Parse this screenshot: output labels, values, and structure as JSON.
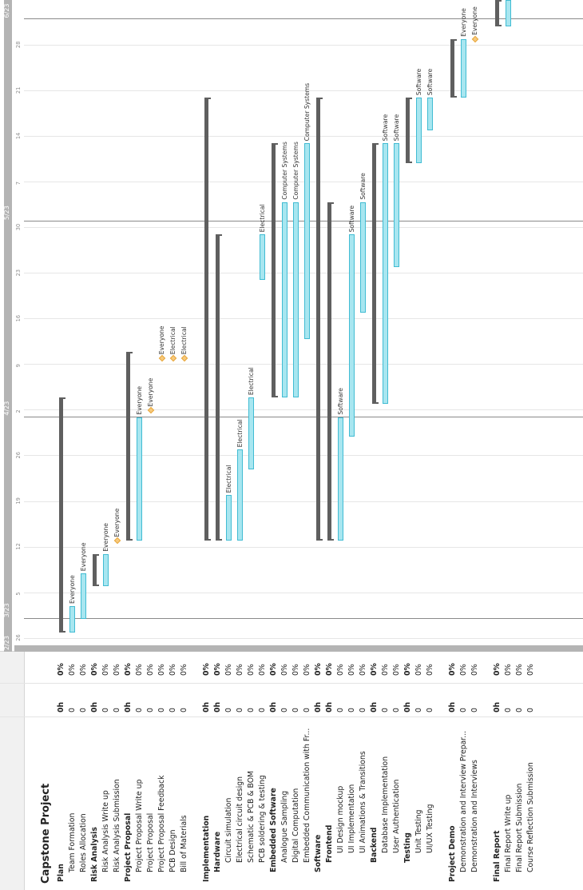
{
  "project_title": "Capstone Project",
  "timeline": {
    "months": [
      "2/23",
      "3/23",
      "4/23",
      "5/23",
      "6/23"
    ],
    "days": [
      "26",
      "5",
      "12",
      "19",
      "26",
      "2",
      "9",
      "16",
      "23",
      "30",
      "7",
      "14",
      "21",
      "28"
    ]
  },
  "rows": [
    {
      "name": "Plan",
      "hours": "0h",
      "pct": "0%",
      "bold": true,
      "indent": 0
    },
    {
      "name": "Team Formation",
      "hours": "0",
      "pct": "0%",
      "bold": false,
      "indent": 1
    },
    {
      "name": "Roles Allocation",
      "hours": "0",
      "pct": "0%",
      "bold": false,
      "indent": 1
    },
    {
      "name": "Risk Analysis",
      "hours": "0h",
      "pct": "0%",
      "bold": true,
      "indent": 0
    },
    {
      "name": "Risk Analysis Write up",
      "hours": "0",
      "pct": "0%",
      "bold": false,
      "indent": 1
    },
    {
      "name": "Risk Analysis Submission",
      "hours": "0",
      "pct": "0%",
      "bold": false,
      "indent": 1
    },
    {
      "name": "Project Proposal",
      "hours": "0h",
      "pct": "0%",
      "bold": true,
      "indent": 0
    },
    {
      "name": "Project Proposal Write up",
      "hours": "0",
      "pct": "0%",
      "bold": false,
      "indent": 1
    },
    {
      "name": "Project Proposal",
      "hours": "0",
      "pct": "0%",
      "bold": false,
      "indent": 1
    },
    {
      "name": "Project Proposal Feedback",
      "hours": "0",
      "pct": "0%",
      "bold": false,
      "indent": 1
    },
    {
      "name": "PCB Design",
      "hours": "0",
      "pct": "0%",
      "bold": false,
      "indent": 1
    },
    {
      "name": "Bill of Materials",
      "hours": "0",
      "pct": "0%",
      "bold": false,
      "indent": 1
    },
    {
      "name": "",
      "hours": "",
      "pct": "",
      "bold": false,
      "indent": 0
    },
    {
      "name": "Implementation",
      "hours": "0h",
      "pct": "0%",
      "bold": true,
      "indent": 0
    },
    {
      "name": "Hardware",
      "hours": "0h",
      "pct": "0%",
      "bold": true,
      "indent": 1
    },
    {
      "name": "Circuit simulation",
      "hours": "0",
      "pct": "0%",
      "bold": false,
      "indent": 2
    },
    {
      "name": "Electrical circuit design",
      "hours": "0",
      "pct": "0%",
      "bold": false,
      "indent": 2
    },
    {
      "name": "Schematic & PCB & BOM",
      "hours": "0",
      "pct": "0%",
      "bold": false,
      "indent": 2
    },
    {
      "name": "PCB soldering &  testing",
      "hours": "0",
      "pct": "0%",
      "bold": false,
      "indent": 2
    },
    {
      "name": "Embedded Software",
      "hours": "0h",
      "pct": "0%",
      "bold": true,
      "indent": 1
    },
    {
      "name": "Analogue Sampling",
      "hours": "0",
      "pct": "0%",
      "bold": false,
      "indent": 2
    },
    {
      "name": "Digital Computation",
      "hours": "0",
      "pct": "0%",
      "bold": false,
      "indent": 2
    },
    {
      "name": "Embedded Communication with Fr...",
      "hours": "0",
      "pct": "0%",
      "bold": false,
      "indent": 2
    },
    {
      "name": "Software",
      "hours": "0h",
      "pct": "0%",
      "bold": true,
      "indent": 1
    },
    {
      "name": "Frontend",
      "hours": "0h",
      "pct": "0%",
      "bold": true,
      "indent": 2
    },
    {
      "name": "UI Design mockup",
      "hours": "0",
      "pct": "0%",
      "bold": false,
      "indent": 3
    },
    {
      "name": "UI Implementation",
      "hours": "0",
      "pct": "0%",
      "bold": false,
      "indent": 3
    },
    {
      "name": "UI Animations & Transitions",
      "hours": "0",
      "pct": "0%",
      "bold": false,
      "indent": 3
    },
    {
      "name": "Backend",
      "hours": "0h",
      "pct": "0%",
      "bold": true,
      "indent": 2
    },
    {
      "name": "Database Implementation",
      "hours": "0",
      "pct": "0%",
      "bold": false,
      "indent": 3
    },
    {
      "name": "User Authentication",
      "hours": "0",
      "pct": "0%",
      "bold": false,
      "indent": 3
    },
    {
      "name": "Testing",
      "hours": "0h",
      "pct": "0%",
      "bold": true,
      "indent": 2
    },
    {
      "name": "Unit Testing",
      "hours": "0",
      "pct": "0%",
      "bold": false,
      "indent": 3
    },
    {
      "name": "UI/UX Testing",
      "hours": "0",
      "pct": "0%",
      "bold": false,
      "indent": 3
    },
    {
      "name": "",
      "hours": "",
      "pct": "",
      "bold": false,
      "indent": 0
    },
    {
      "name": "Project Demo",
      "hours": "0h",
      "pct": "0%",
      "bold": true,
      "indent": 0
    },
    {
      "name": "Demonstration and Interview Prepar...",
      "hours": "0",
      "pct": "0%",
      "bold": false,
      "indent": 1
    },
    {
      "name": "Demonstration and Interviews",
      "hours": "0",
      "pct": "0%",
      "bold": false,
      "indent": 1
    },
    {
      "name": "",
      "hours": "",
      "pct": "",
      "bold": false,
      "indent": 0
    },
    {
      "name": "Final Report",
      "hours": "0h",
      "pct": "0%",
      "bold": true,
      "indent": 0
    },
    {
      "name": "Final Report Write up",
      "hours": "0",
      "pct": "0%",
      "bold": false,
      "indent": 1
    },
    {
      "name": "Final Report Submission",
      "hours": "0",
      "pct": "0%",
      "bold": false,
      "indent": 1
    },
    {
      "name": "Course Reflection Submission",
      "hours": "0",
      "pct": "0%",
      "bold": false,
      "indent": 1
    }
  ],
  "chart_data": {
    "type": "gantt",
    "tasks": [
      {
        "row": 0,
        "kind": "summary",
        "start": "2023-02-27",
        "end": "2023-04-04"
      },
      {
        "row": 1,
        "kind": "task",
        "start": "2023-02-27",
        "end": "2023-03-03",
        "label": "Everyone"
      },
      {
        "row": 2,
        "kind": "task",
        "start": "2023-03-01",
        "end": "2023-03-08",
        "label": "Everyone"
      },
      {
        "row": 3,
        "kind": "summary",
        "start": "2023-03-06",
        "end": "2023-03-11"
      },
      {
        "row": 4,
        "kind": "task",
        "start": "2023-03-06",
        "end": "2023-03-11",
        "label": "Everyone"
      },
      {
        "row": 5,
        "kind": "milestone",
        "start": "2023-03-13",
        "label": "Everyone"
      },
      {
        "row": 6,
        "kind": "summary",
        "start": "2023-03-13",
        "end": "2023-04-11"
      },
      {
        "row": 7,
        "kind": "task",
        "start": "2023-03-13",
        "end": "2023-04-01",
        "label": "Everyone"
      },
      {
        "row": 8,
        "kind": "milestone",
        "start": "2023-04-02",
        "label": "Everyone"
      },
      {
        "row": 9,
        "kind": "milestone",
        "start": "2023-04-10",
        "label": "Everyone"
      },
      {
        "row": 10,
        "kind": "milestone",
        "start": "2023-04-10",
        "label": "Electrical"
      },
      {
        "row": 11,
        "kind": "milestone",
        "start": "2023-04-10",
        "label": "Electrical"
      },
      {
        "row": 13,
        "kind": "summary",
        "start": "2023-03-13",
        "end": "2023-05-20"
      },
      {
        "row": 14,
        "kind": "summary",
        "start": "2023-03-13",
        "end": "2023-04-29"
      },
      {
        "row": 15,
        "kind": "task",
        "start": "2023-03-13",
        "end": "2023-03-20",
        "label": "Electrical"
      },
      {
        "row": 16,
        "kind": "task",
        "start": "2023-03-13",
        "end": "2023-03-27",
        "label": "Electrical"
      },
      {
        "row": 17,
        "kind": "task",
        "start": "2023-03-24",
        "end": "2023-04-04",
        "label": "Electrical"
      },
      {
        "row": 18,
        "kind": "task",
        "start": "2023-04-22",
        "end": "2023-04-29",
        "label": "Electrical"
      },
      {
        "row": 19,
        "kind": "summary",
        "start": "2023-04-04",
        "end": "2023-05-13"
      },
      {
        "row": 20,
        "kind": "task",
        "start": "2023-04-04",
        "end": "2023-05-04",
        "label": "Computer Systems"
      },
      {
        "row": 21,
        "kind": "task",
        "start": "2023-04-04",
        "end": "2023-05-04",
        "label": "Computer Systems"
      },
      {
        "row": 22,
        "kind": "task",
        "start": "2023-04-13",
        "end": "2023-05-13",
        "label": "Computer Systems"
      },
      {
        "row": 23,
        "kind": "summary",
        "start": "2023-03-13",
        "end": "2023-05-20"
      },
      {
        "row": 24,
        "kind": "summary",
        "start": "2023-03-13",
        "end": "2023-05-04"
      },
      {
        "row": 25,
        "kind": "task",
        "start": "2023-03-13",
        "end": "2023-04-01",
        "label": "Software"
      },
      {
        "row": 26,
        "kind": "task",
        "start": "2023-03-29",
        "end": "2023-04-29",
        "label": "Software"
      },
      {
        "row": 27,
        "kind": "task",
        "start": "2023-04-17",
        "end": "2023-05-04",
        "label": "Software"
      },
      {
        "row": 28,
        "kind": "summary",
        "start": "2023-04-03",
        "end": "2023-05-13"
      },
      {
        "row": 29,
        "kind": "task",
        "start": "2023-04-03",
        "end": "2023-05-13",
        "label": "Software"
      },
      {
        "row": 30,
        "kind": "task",
        "start": "2023-04-24",
        "end": "2023-05-13",
        "label": "Software"
      },
      {
        "row": 31,
        "kind": "summary",
        "start": "2023-05-10",
        "end": "2023-05-20"
      },
      {
        "row": 32,
        "kind": "task",
        "start": "2023-05-10",
        "end": "2023-05-20",
        "label": "Software"
      },
      {
        "row": 33,
        "kind": "task",
        "start": "2023-05-15",
        "end": "2023-05-20",
        "label": "Software"
      },
      {
        "row": 35,
        "kind": "summary",
        "start": "2023-05-20",
        "end": "2023-05-29"
      },
      {
        "row": 36,
        "kind": "task",
        "start": "2023-05-20",
        "end": "2023-05-29",
        "label": "Everyone"
      },
      {
        "row": 37,
        "kind": "milestone",
        "start": "2023-05-29",
        "label": "Everyone"
      },
      {
        "row": 39,
        "kind": "summary",
        "start": "2023-05-31",
        "end": "2023-06-04"
      },
      {
        "row": 40,
        "kind": "task",
        "start": "2023-05-31",
        "end": "2023-06-04",
        "label": "Everyone"
      },
      {
        "row": 41,
        "kind": "milestone",
        "start": "2023-06-05",
        "label": "Everyone"
      },
      {
        "row": 42,
        "kind": "milestone",
        "start": "2023-06-06",
        "label": "Everyone"
      }
    ]
  }
}
